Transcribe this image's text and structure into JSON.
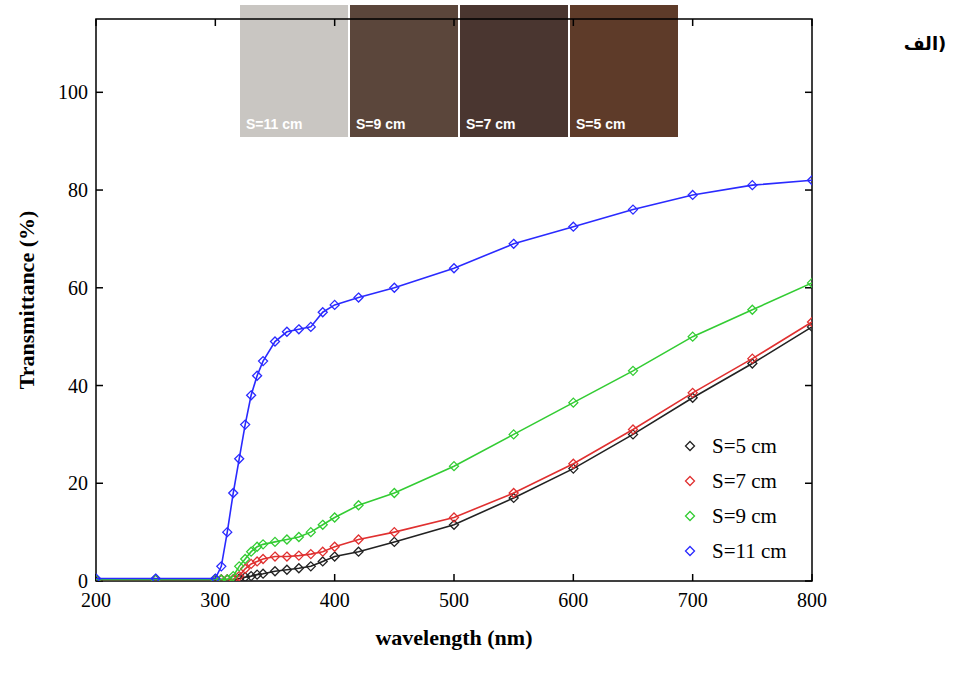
{
  "chart_data": {
    "type": "scatter",
    "panel_label": "الف)",
    "x_label": "wavelength (nm)",
    "y_label": "Transmittance (%)",
    "annotations": [
      "S=11 cm",
      "S=9 cm",
      "S=7 cm",
      "S=5 cm"
    ],
    "x": [
      200,
      250,
      300,
      305,
      310,
      315,
      320,
      325,
      330,
      335,
      340,
      350,
      360,
      370,
      380,
      390,
      400,
      420,
      450,
      500,
      550,
      600,
      650,
      700,
      750,
      800
    ],
    "series": [
      {
        "name": "S=5 cm",
        "color": "#222222",
        "values": [
          0.3,
          0.3,
          0.3,
          0.3,
          0.3,
          0.3,
          0.5,
          0.8,
          1,
          1.3,
          1.5,
          2,
          2.3,
          2.6,
          3,
          4,
          5,
          6,
          8,
          11.5,
          17,
          23,
          30,
          37.5,
          44.5,
          52
        ]
      },
      {
        "name": "S=7 cm",
        "color": "#e03030",
        "values": [
          0.3,
          0.3,
          0.3,
          0.3,
          0.3,
          0.3,
          1,
          2.5,
          3.5,
          4,
          4.5,
          5,
          5,
          5.2,
          5.5,
          6,
          7,
          8.5,
          10,
          13,
          18,
          24,
          31,
          38.5,
          45.5,
          53
        ]
      },
      {
        "name": "S=9 cm",
        "color": "#33cc33",
        "values": [
          0.3,
          0.3,
          0.3,
          0.3,
          0.3,
          1,
          3,
          4.5,
          6,
          7,
          7.5,
          8,
          8.5,
          9,
          10,
          11.5,
          13,
          15.5,
          18,
          23.5,
          30,
          36.5,
          43,
          50,
          55.5,
          61
        ]
      },
      {
        "name": "S=11 cm",
        "color": "#2a2aff",
        "values": [
          0.5,
          0.5,
          0.5,
          3,
          10,
          18,
          25,
          32,
          38,
          42,
          45,
          49,
          51,
          51.5,
          52,
          55,
          56.5,
          58,
          60,
          64,
          69,
          72.5,
          76,
          79,
          81,
          82
        ]
      }
    ],
    "xlim": [
      200,
      800
    ],
    "xticks": [
      200,
      300,
      400,
      500,
      600,
      700,
      800
    ],
    "ylim": [
      0,
      115
    ],
    "yticks": [
      0,
      20,
      40,
      60,
      80,
      100
    ],
    "grid": false,
    "legend": "lower right",
    "marker": "diamond",
    "line_style": "solid"
  }
}
